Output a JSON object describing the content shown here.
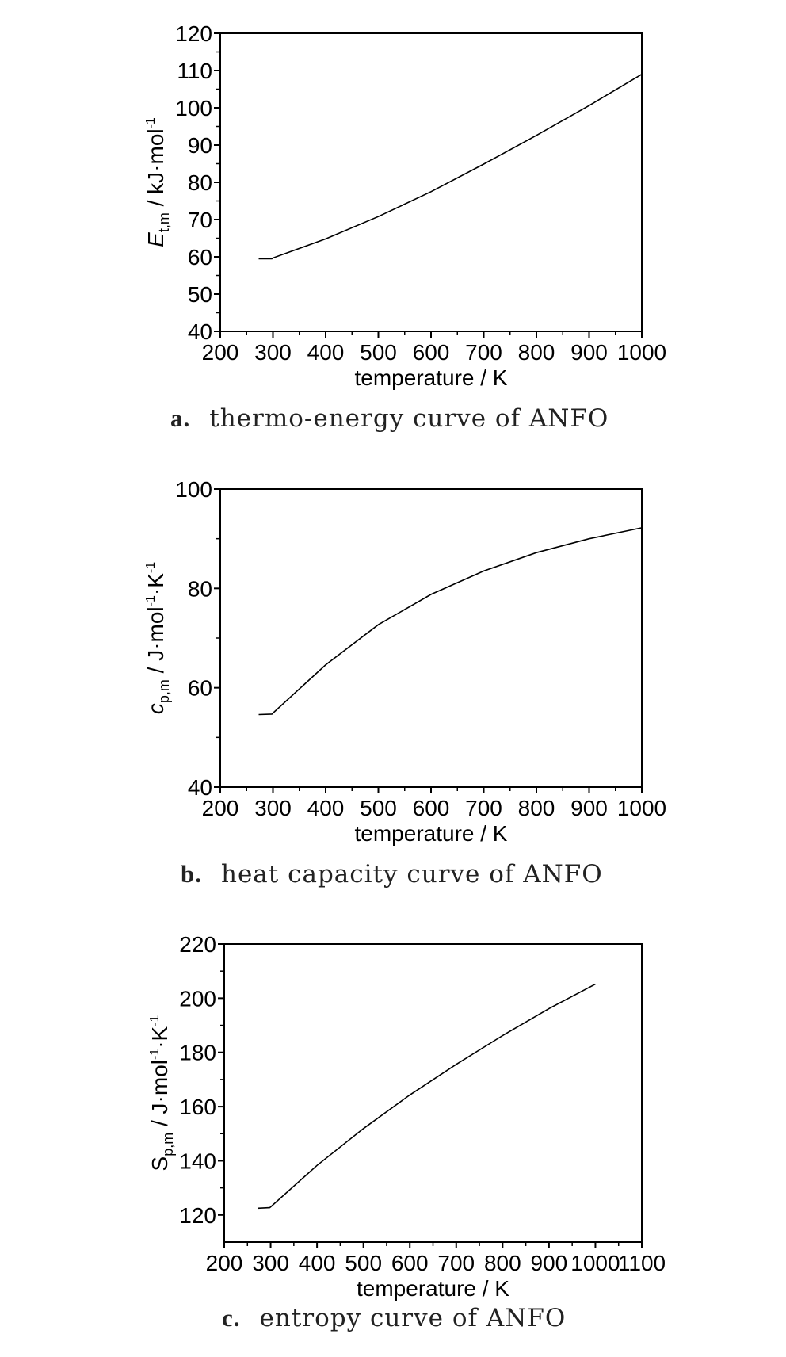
{
  "chart_data": [
    {
      "id": "a",
      "type": "line",
      "caption_letter": "a.",
      "caption_text": "thermo-energy curve of ANFO",
      "xlabel": "temperature / K",
      "ylabel_parts": {
        "symbol": "E",
        "sub": "t,m",
        "unit_pre": " / kJ·mol",
        "sup1": "-1",
        "mid": "",
        "sup2": ""
      },
      "xlim": [
        200,
        1000
      ],
      "ylim": [
        40,
        120
      ],
      "xticks": [
        200,
        300,
        400,
        500,
        600,
        700,
        800,
        900,
        1000
      ],
      "yticks": [
        40,
        50,
        60,
        70,
        80,
        90,
        100,
        110,
        120
      ],
      "series": [
        {
          "x": [
            273,
            298,
            300,
            400,
            500,
            600,
            700,
            800,
            900,
            1000
          ],
          "y": [
            59.5,
            59.5,
            59.7,
            64.8,
            70.8,
            77.5,
            84.9,
            92.6,
            100.6,
            109.0
          ]
        }
      ]
    },
    {
      "id": "b",
      "type": "line",
      "caption_letter": "b.",
      "caption_text": "heat capacity curve of ANFO",
      "xlabel": "temperature / K",
      "ylabel_parts": {
        "symbol": "c",
        "sub": "p,m",
        "unit_pre": " / J·mol",
        "sup1": "-1",
        "mid": "·K",
        "sup2": "-1"
      },
      "xlim": [
        200,
        1000
      ],
      "ylim": [
        40,
        100
      ],
      "xticks": [
        200,
        300,
        400,
        500,
        600,
        700,
        800,
        900,
        1000
      ],
      "yticks": [
        40,
        60,
        80,
        100
      ],
      "series": [
        {
          "x": [
            273,
            298,
            300,
            400,
            500,
            600,
            700,
            800,
            900,
            1000
          ],
          "y": [
            54.6,
            54.7,
            54.9,
            64.6,
            72.7,
            78.8,
            83.5,
            87.2,
            90.0,
            92.2
          ]
        }
      ]
    },
    {
      "id": "c",
      "type": "line",
      "caption_letter": "c.",
      "caption_text": "entropy curve of ANFO",
      "xlabel": "temperature / K",
      "ylabel_parts": {
        "symbol": "S",
        "sub": "p,m",
        "unit_pre": " / J·mol",
        "sup1": "-1",
        "mid": "·K",
        "sup2": "-1"
      },
      "xlim": [
        200,
        1100
      ],
      "ylim": [
        110,
        220
      ],
      "xticks": [
        200,
        300,
        400,
        500,
        600,
        700,
        800,
        900,
        1000,
        1100
      ],
      "yticks": [
        120,
        140,
        160,
        180,
        200,
        220
      ],
      "series": [
        {
          "x": [
            273,
            298,
            300,
            400,
            500,
            600,
            700,
            800,
            900,
            1000
          ],
          "y": [
            122.5,
            122.7,
            123.0,
            138.3,
            151.9,
            164.3,
            175.6,
            186.2,
            196.2,
            205.2
          ]
        }
      ]
    }
  ]
}
